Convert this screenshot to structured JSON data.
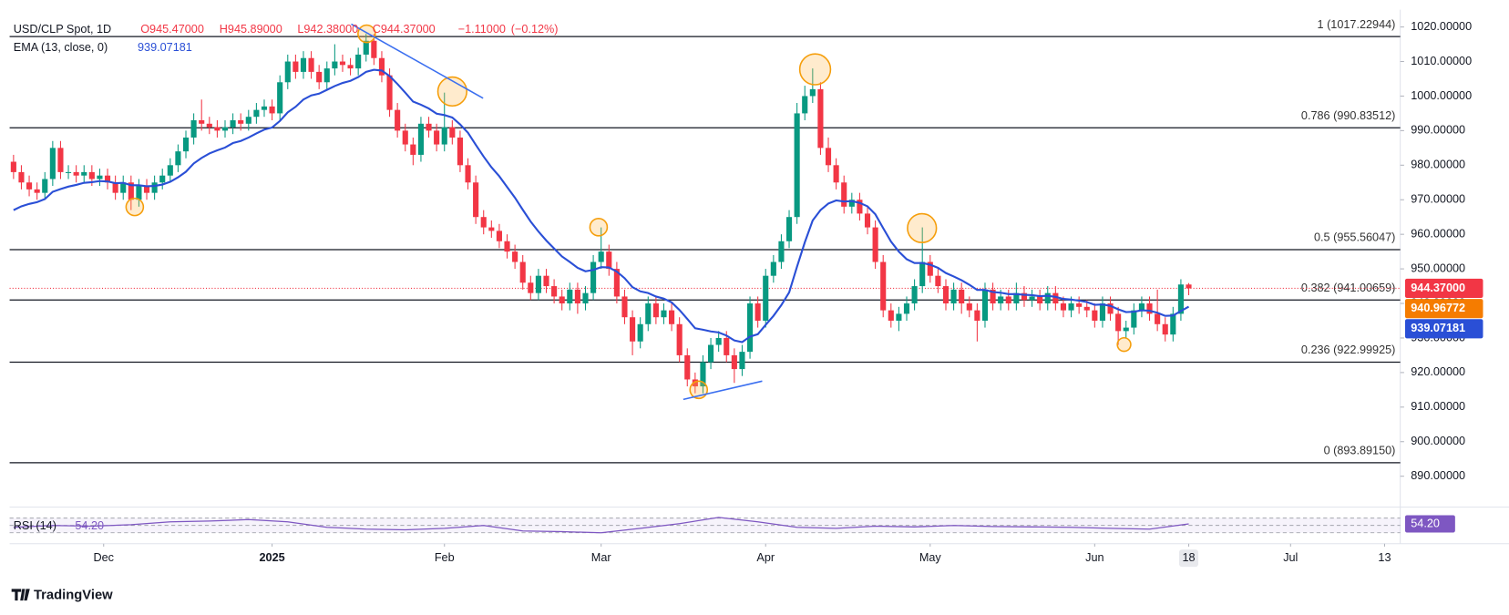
{
  "chart_data": {
    "type": "candlestick",
    "title": "USD/CLP Spot, 1D",
    "ohlc_labels": [
      {
        "value": 945.47,
        "label": "O945.47000"
      },
      {
        "value": 945.89,
        "label": "H945.89000"
      },
      {
        "value": 942.38,
        "label": "L942.38000"
      },
      {
        "value": 944.37,
        "label": "C944.37000"
      }
    ],
    "change": {
      "value": -1.11,
      "label": "−1.11000"
    },
    "change_pct": {
      "value": -0.12,
      "label": "(−0.12%)"
    },
    "up_color": "#089981",
    "down_color": "#f23645",
    "open": [
      981,
      978,
      975,
      973,
      972,
      976,
      985,
      978,
      978,
      977,
      978,
      976,
      977,
      975,
      972,
      975,
      970,
      974,
      972,
      975,
      977,
      980,
      984,
      988,
      993,
      992,
      991,
      990,
      991,
      993,
      992,
      994,
      996,
      997,
      995,
      1004,
      1010,
      1007,
      1011,
      1007,
      1004,
      1008,
      1010,
      1009,
      1008,
      1012,
      1016,
      1011,
      1006,
      996,
      990,
      986,
      983,
      992,
      990,
      986,
      991,
      988,
      980,
      975,
      965,
      962,
      961,
      958,
      955,
      952,
      946,
      943,
      948,
      945,
      942,
      940,
      944,
      940,
      943,
      952,
      955,
      950,
      942,
      936,
      929,
      934,
      940,
      936,
      938,
      934,
      925,
      918,
      916,
      923,
      928,
      930,
      925,
      921,
      926,
      940,
      935,
      948,
      952,
      958,
      965,
      995,
      1000,
      1002,
      985,
      980,
      975,
      968,
      970,
      966,
      962,
      952,
      938,
      935,
      937,
      940,
      945,
      952,
      948,
      945,
      940,
      944,
      940,
      938,
      935,
      944,
      940,
      942,
      940,
      943,
      941,
      942,
      940,
      943,
      940,
      938,
      940,
      939,
      938,
      935,
      940,
      937,
      932,
      933,
      938,
      940,
      937,
      934,
      931,
      937,
      945.47
    ],
    "high": [
      983,
      980,
      977,
      975,
      978,
      987,
      987,
      980,
      980,
      980,
      980,
      979,
      979,
      977,
      977,
      977,
      976,
      976,
      977,
      979,
      982,
      986,
      990,
      995,
      999,
      994,
      993,
      993,
      995,
      995,
      996,
      998,
      999,
      999,
      1006,
      1012,
      1012,
      1013,
      1013,
      1009,
      1010,
      1015,
      1012,
      1011,
      1014,
      1018,
      1018,
      1013,
      1008,
      998,
      992,
      988,
      994,
      994,
      992,
      1001,
      993,
      990,
      982,
      977,
      967,
      964,
      963,
      960,
      957,
      954,
      948,
      950,
      950,
      947,
      944,
      946,
      946,
      945,
      954,
      962,
      957,
      952,
      944,
      938,
      936,
      942,
      942,
      940,
      940,
      936,
      927,
      920,
      925,
      930,
      932,
      932,
      927,
      928,
      942,
      942,
      950,
      954,
      960,
      967,
      998,
      1003,
      1008,
      1004,
      988,
      982,
      977,
      972,
      972,
      968,
      964,
      954,
      940,
      939,
      942,
      947,
      962,
      954,
      950,
      947,
      946,
      946,
      942,
      940,
      946,
      946,
      944,
      944,
      946,
      945,
      944,
      944,
      945,
      945,
      942,
      942,
      942,
      941,
      940,
      942,
      942,
      939,
      935,
      940,
      942,
      942,
      944,
      936,
      939,
      947,
      945.89
    ],
    "low": [
      976,
      973,
      971,
      970,
      970,
      974,
      976,
      976,
      975,
      975,
      974,
      974,
      973,
      970,
      970,
      967,
      968,
      970,
      970,
      973,
      975,
      978,
      982,
      986,
      990,
      989,
      988,
      988,
      989,
      990,
      990,
      992,
      994,
      993,
      993,
      1002,
      1005,
      1005,
      1005,
      1002,
      1002,
      1006,
      1007,
      1006,
      1006,
      1010,
      1009,
      1004,
      994,
      988,
      984,
      980,
      981,
      988,
      984,
      984,
      986,
      978,
      973,
      963,
      960,
      959,
      956,
      953,
      950,
      944,
      941,
      941,
      943,
      940,
      938,
      938,
      937,
      938,
      941,
      950,
      948,
      940,
      934,
      925,
      927,
      932,
      934,
      934,
      932,
      923,
      916,
      914,
      914,
      921,
      926,
      923,
      917,
      919,
      924,
      933,
      933,
      946,
      950,
      956,
      963,
      993,
      998,
      983,
      978,
      973,
      966,
      966,
      964,
      960,
      950,
      936,
      933,
      932,
      935,
      938,
      943,
      946,
      943,
      938,
      938,
      937,
      936,
      929,
      933,
      938,
      938,
      938,
      938,
      939,
      939,
      938,
      938,
      938,
      936,
      936,
      937,
      936,
      933,
      933,
      935,
      928,
      930,
      931,
      936,
      935,
      932,
      929,
      929,
      935,
      942.38
    ],
    "close": [
      978,
      975,
      973,
      972,
      976,
      985,
      978,
      978,
      977,
      978,
      976,
      977,
      975,
      972,
      975,
      970,
      974,
      972,
      975,
      977,
      980,
      984,
      988,
      993,
      992,
      991,
      990,
      991,
      993,
      992,
      994,
      996,
      997,
      995,
      1004,
      1010,
      1007,
      1011,
      1007,
      1004,
      1008,
      1010,
      1009,
      1008,
      1012,
      1016,
      1011,
      1006,
      996,
      990,
      986,
      983,
      992,
      990,
      986,
      991,
      988,
      980,
      975,
      965,
      962,
      961,
      958,
      955,
      952,
      946,
      943,
      948,
      945,
      942,
      940,
      944,
      940,
      943,
      952,
      955,
      950,
      942,
      936,
      929,
      934,
      940,
      936,
      938,
      934,
      925,
      918,
      916,
      923,
      928,
      930,
      925,
      921,
      926,
      940,
      935,
      948,
      952,
      958,
      965,
      995,
      1000,
      1002,
      985,
      980,
      975,
      968,
      970,
      966,
      962,
      952,
      938,
      935,
      937,
      940,
      945,
      952,
      948,
      945,
      940,
      944,
      940,
      938,
      935,
      944,
      940,
      942,
      940,
      943,
      941,
      942,
      940,
      943,
      940,
      938,
      940,
      939,
      938,
      935,
      940,
      937,
      932,
      933,
      938,
      940,
      937,
      934,
      931,
      937,
      945.48,
      944.37
    ],
    "ema": {
      "name": "EMA (13, close, 0)",
      "color": "#2a4fd6",
      "values": [
        967,
        968.1,
        968.8,
        969.3,
        970.2,
        972.3,
        973.1,
        973.8,
        974.3,
        974.9,
        975.1,
        975.4,
        975.3,
        974.8,
        974.9,
        974.2,
        974.2,
        973.9,
        974.0,
        974.4,
        975.2,
        976.5,
        978.1,
        980.5,
        982.1,
        983.4,
        984.3,
        985.1,
        986.4,
        987.0,
        988.0,
        989.2,
        990.3,
        990.9,
        992.8,
        995.3,
        996.9,
        999.0,
        1000.2,
        1000.7,
        1001.8,
        1002.9,
        1003.8,
        1004.4,
        1005.5,
        1007.0,
        1007.6,
        1007.4,
        1005.8,
        1003.5,
        1001.0,
        998.4,
        997.5,
        996.4,
        994.9,
        994.5,
        993.8,
        991.8,
        989.4,
        985.9,
        982.5,
        979.4,
        976.8,
        973.7,
        970.6,
        967.1,
        963.7,
        960.8,
        958.2,
        955.9,
        953.6,
        952.0,
        950.3,
        949.3,
        949.7,
        950.5,
        950.4,
        949.2,
        947.3,
        944.7,
        943.5,
        943.0,
        942.0,
        941.4,
        940.3,
        938.1,
        935.5,
        932.8,
        932.4,
        931.9,
        931.6,
        930.7,
        929.3,
        928.8,
        930.4,
        931.1,
        933.8,
        936.4,
        939.5,
        943.2,
        950.6,
        957.7,
        964.0,
        967.0,
        968.9,
        969.8,
        969.5,
        969.6,
        969.1,
        968.1,
        965.8,
        961.8,
        957.9,
        955.0,
        952.8,
        951.7,
        951.7,
        951.2,
        950.3,
        948.8,
        947.8,
        946.7,
        945.4,
        943.9,
        943.9,
        943.3,
        943.1,
        942.7,
        942.7,
        942.5,
        942.4,
        942.1,
        942.2,
        941.9,
        941.3,
        941.1,
        940.8,
        940.4,
        939.6,
        939.7,
        939.3,
        938.3,
        937.5,
        937.6,
        938.0,
        937.9,
        937.3,
        936.4,
        936.5,
        937.8,
        939.07181
      ]
    },
    "last_price": {
      "value": 944.37,
      "label": "944.37000"
    },
    "level_value": 940.96772,
    "level_color": "#f57c00",
    "fib_levels": [
      {
        "value": 1017.22944,
        "label": "1 (1017.22944)"
      },
      {
        "value": 990.83512,
        "label": "0.786 (990.83512)"
      },
      {
        "value": 955.56047,
        "label": "0.5 (955.56047)"
      },
      {
        "value": 941.00659,
        "label": "0.382 (941.00659)"
      },
      {
        "value": 922.99925,
        "label": "0.236 (922.99925)"
      },
      {
        "value": 893.8915,
        "label": "0 (893.89150)"
      }
    ],
    "xlim": [
      -0.5,
      177
    ],
    "xticks": [
      {
        "value": 11.5,
        "label": "Dec"
      },
      {
        "value": 33,
        "label": "2025"
      },
      {
        "value": 55,
        "label": "Feb"
      },
      {
        "value": 75,
        "label": "Mar"
      },
      {
        "value": 96,
        "label": "Apr"
      },
      {
        "value": 117,
        "label": "May"
      },
      {
        "value": 138,
        "label": "Jun"
      },
      {
        "value": 150,
        "label": "18"
      },
      {
        "value": 163,
        "label": "Jul"
      },
      {
        "value": 175,
        "label": "13"
      }
    ],
    "ylim": [
      881.6,
      1025
    ],
    "yticks": [
      {
        "value": 1020,
        "label": "1020.00000"
      },
      {
        "value": 1010,
        "label": "1010.00000"
      },
      {
        "value": 1000,
        "label": "1000.00000"
      },
      {
        "value": 990,
        "label": "990.00000"
      },
      {
        "value": 980,
        "label": "980.00000"
      },
      {
        "value": 970,
        "label": "970.00000"
      },
      {
        "value": 960,
        "label": "960.00000"
      },
      {
        "value": 950,
        "label": "950.00000"
      },
      {
        "value": 940,
        "label": "940.00000"
      },
      {
        "value": 930,
        "label": "930.00000"
      },
      {
        "value": 920,
        "label": "920.00000"
      },
      {
        "value": 910,
        "label": "910.00000"
      },
      {
        "value": 900,
        "label": "900.00000"
      },
      {
        "value": 890,
        "label": "890.00000"
      }
    ],
    "rsi": {
      "name": "RSI (14)",
      "color": "#7e57c2",
      "x": [
        0,
        5,
        10,
        15,
        20,
        25,
        30,
        35,
        40,
        45,
        50,
        55,
        60,
        65,
        70,
        75,
        80,
        85,
        90,
        95,
        100,
        105,
        110,
        115,
        120,
        125,
        130,
        135,
        140,
        145,
        150
      ],
      "values": [
        45,
        50,
        48,
        52,
        60,
        62,
        66,
        60,
        45,
        40,
        38,
        42,
        50,
        35,
        33,
        30,
        42,
        55,
        72,
        60,
        45,
        42,
        48,
        46,
        50,
        47,
        46,
        45,
        42,
        40,
        54.2
      ],
      "ylim": [
        0,
        100
      ],
      "levels": [
        70,
        50,
        30
      ],
      "last": {
        "value": 54.2,
        "label": "54.20"
      }
    },
    "brand": "TradingView"
  }
}
